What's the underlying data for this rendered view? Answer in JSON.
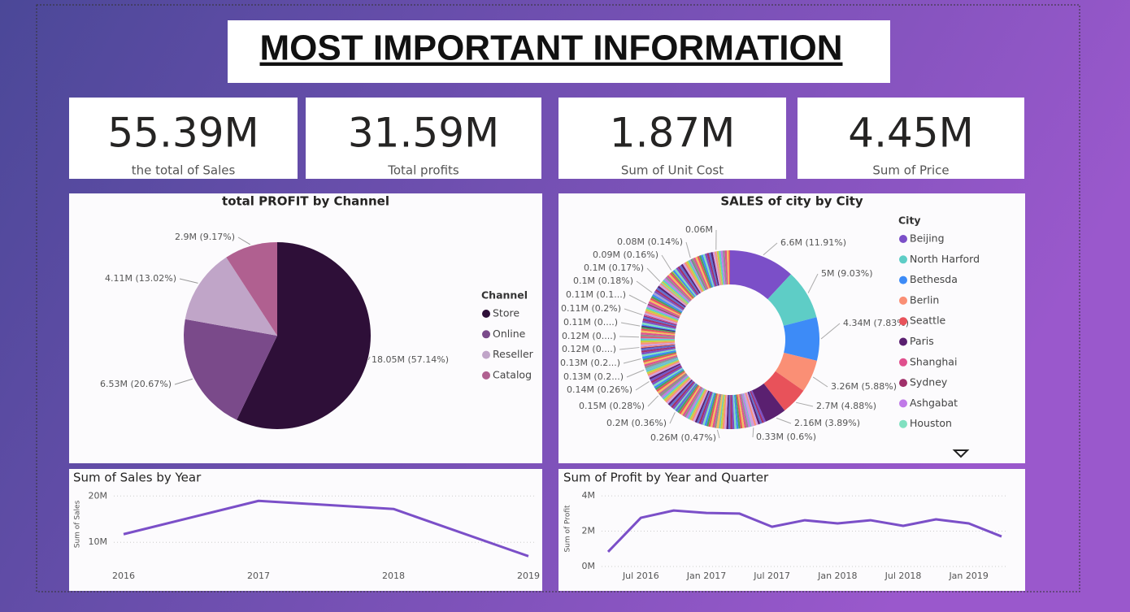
{
  "header": {
    "title": "MOST IMPORTANT INFORMATION"
  },
  "kpis": [
    {
      "value": 55.39,
      "label": "55.39M",
      "caption": "the total of Sales"
    },
    {
      "value": 31.59,
      "label": "31.59M",
      "caption": "Total profits"
    },
    {
      "value": 1.87,
      "label": "1.87M",
      "caption": "Sum of Unit Cost"
    },
    {
      "value": 4.45,
      "label": "4.45M",
      "caption": "Sum of Price"
    }
  ],
  "chart_data": [
    {
      "type": "pie",
      "title": "total PROFIT by Channel",
      "legend_title": "Channel",
      "categories": [
        "Store",
        "Online",
        "Reseller",
        "Catalog"
      ],
      "values": [
        18.05,
        6.53,
        4.11,
        2.9
      ],
      "value_labels": [
        "18.05M (57.14%)",
        "6.53M (20.67%)",
        "4.11M (13.02%)",
        "2.9M (9.17%)"
      ],
      "colors": [
        "#2e0f38",
        "#7a4a8a",
        "#c0a5c8",
        "#b06090"
      ]
    },
    {
      "type": "donut",
      "title": "SALES of city by City",
      "legend_title": "City",
      "legend": [
        {
          "name": "Beijing",
          "color": "#7b4fc8"
        },
        {
          "name": "North Harford",
          "color": "#5ecdc6"
        },
        {
          "name": "Bethesda",
          "color": "#3d8bf7"
        },
        {
          "name": "Berlin",
          "color": "#fa8f75"
        },
        {
          "name": "Seattle",
          "color": "#e8525a"
        },
        {
          "name": "Paris",
          "color": "#5a2070"
        },
        {
          "name": "Shanghai",
          "color": "#e0508e"
        },
        {
          "name": "Sydney",
          "color": "#a0306a"
        },
        {
          "name": "Ashgabat",
          "color": "#c07ae8"
        },
        {
          "name": "Houston",
          "color": "#80e0c0"
        }
      ],
      "values": [
        6.6,
        5,
        4.34,
        3.26,
        2.7,
        2.16,
        0.33,
        0.26,
        0.2,
        0.15,
        0.14,
        0.13,
        0.13,
        0.12,
        0.12,
        0.11,
        0.11,
        0.11,
        0.1,
        0.1,
        0.09,
        0.08,
        0.06
      ],
      "value_labels": [
        "6.6M (11.91%)",
        "5M (9.03%)",
        "4.34M (7.83%)",
        "3.26M (5.88%)",
        "2.7M (4.88%)",
        "2.16M (3.89%)",
        "0.33M (0.6%)",
        "0.26M (0.47%)",
        "0.2M (0.36%)",
        "0.15M (0.28%)",
        "0.14M (0.26%)",
        "0.13M (0.2...)",
        "0.13M (0.2...)",
        "0.12M (0....)",
        "0.12M (0....)",
        "0.11M (0....)",
        "0.11M (0.2%)",
        "0.11M (0.1...)",
        "0.1M (0.18%)",
        "0.1M (0.17%)",
        "0.09M (0.16%)",
        "0.08M (0.14%)",
        "0.06M"
      ]
    },
    {
      "type": "line",
      "title": "Sum of Sales by Year",
      "y_label": "Sum of Sales",
      "color": "#7b4fc8",
      "categories": [
        "2016",
        "2017",
        "2018",
        "2019"
      ],
      "values": [
        11.75,
        18.95,
        17.2,
        7.0
      ],
      "ylim": [
        6,
        21.8
      ],
      "yticks": [
        {
          "value": 10,
          "label": "10M"
        },
        {
          "value": 20,
          "label": "20M"
        }
      ],
      "grid": true
    },
    {
      "type": "line",
      "title": "Sum of Profit by Year and Quarter",
      "y_label": "Sum of Profit",
      "color": "#7b4fc8",
      "categories": [
        null,
        "Jul 2016",
        null,
        "Jan 2017",
        null,
        "Jul 2017",
        null,
        "Jan 2018",
        null,
        "Jul 2018",
        null,
        "Jan 2019",
        null
      ],
      "values": [
        0.83,
        2.76,
        3.17,
        3.03,
        3.0,
        2.25,
        2.62,
        2.44,
        2.62,
        2.3,
        2.67,
        2.44,
        1.7
      ],
      "ylim": [
        0,
        4.28
      ],
      "yticks": [
        {
          "value": 0,
          "label": "0M"
        },
        {
          "value": 2,
          "label": "2M"
        },
        {
          "value": 4,
          "label": "4M"
        }
      ],
      "grid": true
    }
  ]
}
